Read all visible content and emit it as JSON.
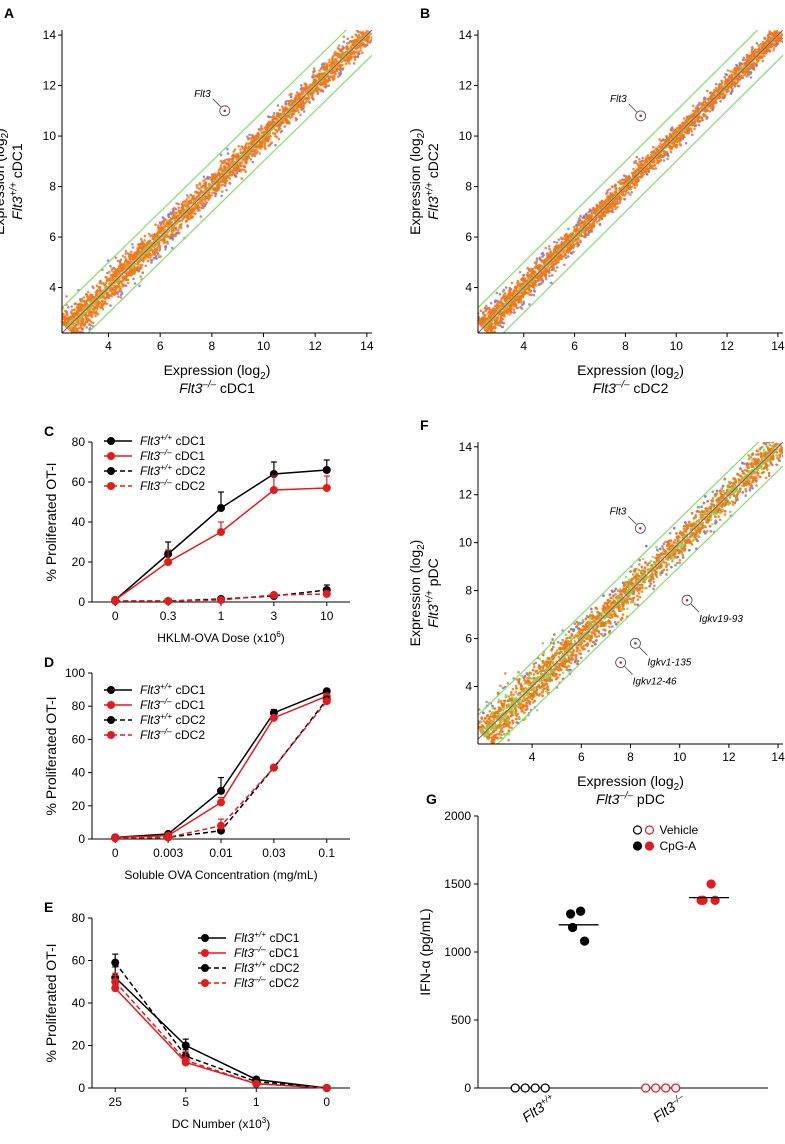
{
  "colors": {
    "black": "#000000",
    "red": "#e41a1c",
    "green": "#7fe06a",
    "orange": "#f07818",
    "olive": "#b8b832",
    "purple": "#8c7ab8",
    "magenta": "#b03890"
  },
  "chart_data": [
    {
      "id": "A",
      "type": "scatter",
      "panel_label": "A",
      "xlabel_line1": "Expression (log",
      "xlabel_sub": "2",
      "xlabel_close": ")",
      "xlabel_gene": "Flt3",
      "xlabel_geno": "–/–",
      "xlabel_cell": " cDC1",
      "ylabel_line1": "Expression (log",
      "ylabel_sub": "2",
      "ylabel_close": ")",
      "ylabel_gene": "Flt3",
      "ylabel_geno": "+/+",
      "ylabel_cell": " cDC1",
      "xlim": [
        2.2,
        14.2
      ],
      "ylim": [
        2.2,
        14.2
      ],
      "xticks": [
        "4",
        "6",
        "8",
        "10",
        "12",
        "14"
      ],
      "yticks": [
        "4",
        "6",
        "8",
        "10",
        "12",
        "14"
      ],
      "xtick_values": [
        4,
        6,
        8,
        10,
        12,
        14
      ],
      "ytick_values": [
        4,
        6,
        8,
        10,
        12,
        14
      ],
      "fold_lines": [
        -1,
        0,
        1
      ],
      "highlight_label": "Flt3",
      "highlight_point": {
        "x": 8.5,
        "y": 11.0
      }
    },
    {
      "id": "B",
      "type": "scatter",
      "panel_label": "B",
      "xlabel_line1": "Expression (log",
      "xlabel_sub": "2",
      "xlabel_close": ")",
      "xlabel_gene": "Flt3",
      "xlabel_geno": "–/–",
      "xlabel_cell": " cDC2",
      "ylabel_line1": "Expression (log",
      "ylabel_sub": "2",
      "ylabel_close": ")",
      "ylabel_gene": "Flt3",
      "ylabel_geno": "+/+",
      "ylabel_cell": " cDC2",
      "xlim": [
        2.2,
        14.2
      ],
      "ylim": [
        2.2,
        14.2
      ],
      "xticks": [
        "4",
        "6",
        "8",
        "10",
        "12",
        "14"
      ],
      "yticks": [
        "4",
        "6",
        "8",
        "10",
        "12",
        "14"
      ],
      "xtick_values": [
        4,
        6,
        8,
        10,
        12,
        14
      ],
      "ytick_values": [
        4,
        6,
        8,
        10,
        12,
        14
      ],
      "fold_lines": [
        -1,
        0,
        1
      ],
      "highlight_label": "Flt3",
      "highlight_point": {
        "x": 8.6,
        "y": 10.8
      }
    },
    {
      "id": "C",
      "type": "line",
      "panel_label": "C",
      "title": "",
      "xlabel": "HKLM-OVA Dose (x10",
      "xlabel_sup": "6",
      "xlabel_close": ")",
      "ylabel": "% Proliferated OT-I",
      "categories": [
        "0",
        "0.3",
        "1",
        "3",
        "10"
      ],
      "ylim": [
        0,
        80
      ],
      "yticks": [
        "0",
        "20",
        "40",
        "60",
        "80"
      ],
      "series": [
        {
          "name_gene": "Flt3",
          "name_geno": "+/+",
          "name_cell": " cDC1",
          "color": "#000000",
          "dashed": false,
          "values": [
            1,
            24,
            47,
            64,
            66
          ],
          "errors": [
            1,
            6,
            8,
            6,
            5
          ]
        },
        {
          "name_gene": "Flt3",
          "name_geno": "–/–",
          "name_cell": " cDC1",
          "color": "#e41a1c",
          "dashed": false,
          "values": [
            1,
            20,
            35,
            56,
            57
          ],
          "errors": [
            1,
            6,
            5,
            7,
            6
          ]
        },
        {
          "name_gene": "Flt3",
          "name_geno": "+/+",
          "name_cell": " cDC2",
          "color": "#000000",
          "dashed": true,
          "values": [
            0.5,
            0.5,
            1.5,
            3,
            6
          ],
          "errors": [
            0.5,
            0.5,
            0.5,
            1,
            2.5
          ]
        },
        {
          "name_gene": "Flt3",
          "name_geno": "–/–",
          "name_cell": " cDC2",
          "color": "#e41a1c",
          "dashed": true,
          "values": [
            0.5,
            0.5,
            1,
            3.5,
            4
          ],
          "errors": [
            0.5,
            0.5,
            0.5,
            1,
            1.5
          ]
        }
      ]
    },
    {
      "id": "D",
      "type": "line",
      "panel_label": "D",
      "xlabel": "Soluble OVA Concentration (mg/mL)",
      "ylabel": "% Proliferated OT-I",
      "categories": [
        "0",
        "0.003",
        "0.01",
        "0.03",
        "0.1"
      ],
      "ylim": [
        0,
        100
      ],
      "yticks": [
        "0",
        "20",
        "40",
        "60",
        "80",
        "100"
      ],
      "series": [
        {
          "name_gene": "Flt3",
          "name_geno": "+/+",
          "name_cell": " cDC1",
          "color": "#000000",
          "dashed": false,
          "values": [
            1,
            3,
            29,
            76,
            89
          ],
          "errors": [
            0.5,
            1,
            8,
            2,
            1
          ]
        },
        {
          "name_gene": "Flt3",
          "name_geno": "–/–",
          "name_cell": " cDC1",
          "color": "#e41a1c",
          "dashed": false,
          "values": [
            1,
            2,
            22,
            73,
            86
          ],
          "errors": [
            0.5,
            1,
            3,
            1,
            1
          ]
        },
        {
          "name_gene": "Flt3",
          "name_geno": "+/+",
          "name_cell": " cDC2",
          "color": "#000000",
          "dashed": true,
          "values": [
            0.5,
            1,
            5,
            43,
            84
          ],
          "errors": [
            0.5,
            0.5,
            1,
            1,
            1
          ]
        },
        {
          "name_gene": "Flt3",
          "name_geno": "–/–",
          "name_cell": " cDC2",
          "color": "#e41a1c",
          "dashed": true,
          "values": [
            0.5,
            1,
            8,
            43,
            83
          ],
          "errors": [
            0.5,
            0.5,
            4,
            1,
            1
          ]
        }
      ]
    },
    {
      "id": "E",
      "type": "line",
      "panel_label": "E",
      "xlabel": "DC Number (x10",
      "xlabel_sup": "3",
      "xlabel_close": ")",
      "ylabel": "% Proliferated OT-I",
      "categories": [
        "25",
        "5",
        "1",
        "0"
      ],
      "ylim": [
        0,
        80
      ],
      "yticks": [
        "0",
        "20",
        "40",
        "60",
        "80"
      ],
      "series": [
        {
          "name_gene": "Flt3",
          "name_geno": "+/+",
          "name_cell": " cDC1",
          "color": "#000000",
          "dashed": false,
          "values": [
            52,
            20,
            4,
            0
          ],
          "errors": [
            5,
            3,
            1,
            0.5
          ]
        },
        {
          "name_gene": "Flt3",
          "name_geno": "–/–",
          "name_cell": " cDC1",
          "color": "#e41a1c",
          "dashed": false,
          "values": [
            47,
            12,
            2,
            0
          ],
          "errors": [
            6,
            3,
            1,
            0.5
          ]
        },
        {
          "name_gene": "Flt3",
          "name_geno": "+/+",
          "name_cell": " cDC2",
          "color": "#000000",
          "dashed": true,
          "values": [
            59,
            15,
            3,
            0
          ],
          "errors": [
            4,
            3,
            1,
            0.5
          ]
        },
        {
          "name_gene": "Flt3",
          "name_geno": "–/–",
          "name_cell": " cDC2",
          "color": "#e41a1c",
          "dashed": true,
          "values": [
            50,
            13,
            2,
            0
          ],
          "errors": [
            4,
            4,
            1,
            0.5
          ]
        }
      ]
    },
    {
      "id": "F",
      "type": "scatter",
      "panel_label": "F",
      "xlabel_line1": "Expression (log",
      "xlabel_sub": "2",
      "xlabel_close": ")",
      "xlabel_gene": "Flt3",
      "xlabel_geno": "–/–",
      "xlabel_cell": " pDC",
      "ylabel_line1": "Expression (log",
      "ylabel_sub": "2",
      "ylabel_close": ")",
      "ylabel_gene": "Flt3",
      "ylabel_geno": "+/+",
      "ylabel_cell": " pDC",
      "xlim": [
        1.8,
        14.2
      ],
      "ylim": [
        1.6,
        14.2
      ],
      "xticks": [
        "4",
        "6",
        "8",
        "10",
        "12",
        "14"
      ],
      "yticks": [
        "4",
        "6",
        "8",
        "10",
        "12",
        "14"
      ],
      "xtick_values": [
        4,
        6,
        8,
        10,
        12,
        14
      ],
      "ytick_values": [
        4,
        6,
        8,
        10,
        12,
        14
      ],
      "fold_lines": [
        -1,
        0,
        1
      ],
      "highlights": [
        {
          "label": "Flt3",
          "x": 8.4,
          "y": 10.6
        },
        {
          "label": "Igkv19-93",
          "x": 10.3,
          "y": 7.6
        },
        {
          "label": "Igkv1-135",
          "x": 8.2,
          "y": 5.8
        },
        {
          "label": "Igkv12-46",
          "x": 7.6,
          "y": 5.0
        }
      ]
    },
    {
      "id": "G",
      "type": "scatter",
      "panel_label": "G",
      "ylabel": "IFN-α (pg/mL)",
      "ylim": [
        0,
        2000
      ],
      "yticks": [
        "0",
        "500",
        "1000",
        "1500",
        "2000"
      ],
      "groups": [
        {
          "gene": "Flt3",
          "geno": "+/+"
        },
        {
          "gene": "Flt3",
          "geno": "–/–"
        }
      ],
      "legend": [
        {
          "label": "Vehicle"
        },
        {
          "label": "CpG-A"
        }
      ],
      "series": [
        {
          "name": "Flt3+/+ Vehicle",
          "color": "#000000",
          "filled": false,
          "values": [
            0,
            0,
            0,
            0
          ]
        },
        {
          "name": "Flt3+/+ CpG-A",
          "color": "#000000",
          "filled": true,
          "values": [
            1280,
            1300,
            1180,
            1080
          ],
          "mean": 1200
        },
        {
          "name": "Flt3-/- Vehicle",
          "color": "#e41a1c",
          "filled": false,
          "values": [
            0,
            0,
            0,
            0
          ]
        },
        {
          "name": "Flt3-/- CpG-A",
          "color": "#e41a1c",
          "filled": true,
          "values": [
            1380,
            1500,
            1380,
            1380
          ],
          "mean": 1400
        }
      ]
    }
  ]
}
